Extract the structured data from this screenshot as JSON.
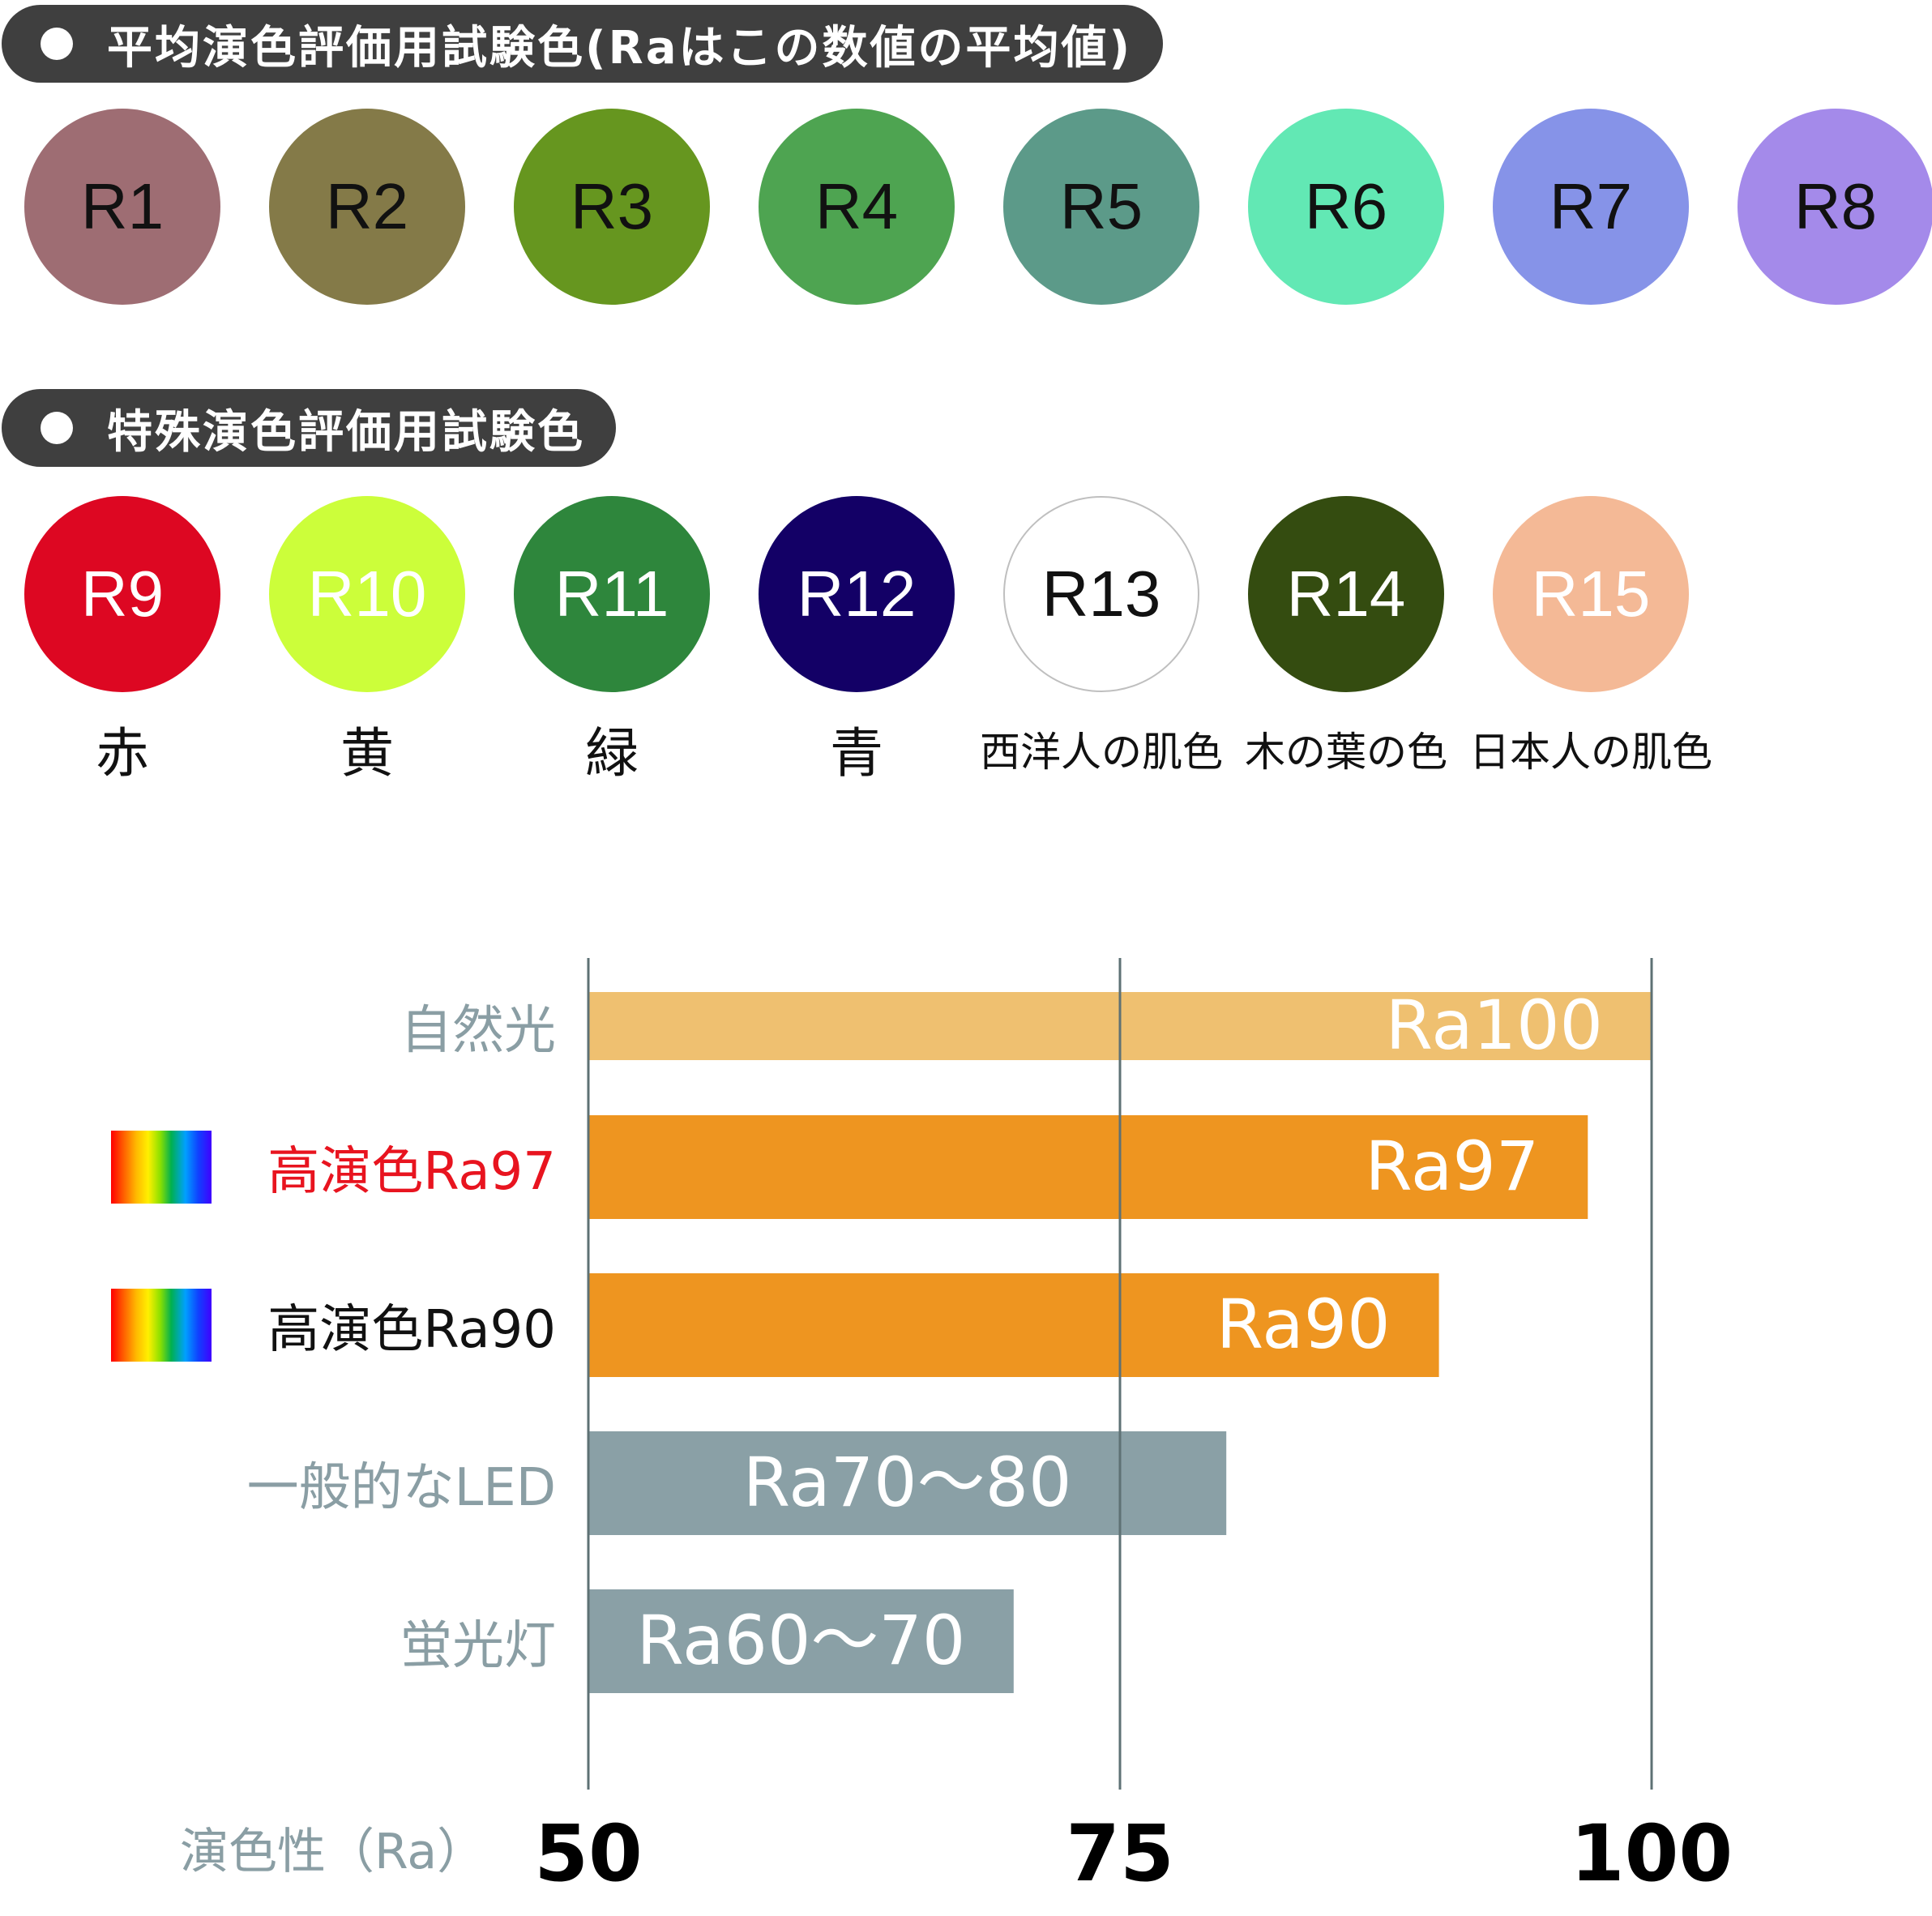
{
  "sections": {
    "general_title": "平均演色評価用試験色(Raはこの数値の平均値)",
    "special_title": "特殊演色評価用試験色"
  },
  "general_colors": [
    {
      "label": "R1",
      "color": "#9e6d73"
    },
    {
      "label": "R2",
      "color": "#847a48"
    },
    {
      "label": "R3",
      "color": "#66961f"
    },
    {
      "label": "R4",
      "color": "#4ea451"
    },
    {
      "label": "R5",
      "color": "#5c9a89"
    },
    {
      "label": "R6",
      "color": "#62e8b4"
    },
    {
      "label": "R7",
      "color": "#8693e8"
    },
    {
      "label": "R8",
      "color": "#a48aea"
    }
  ],
  "special_colors": [
    {
      "label": "R9",
      "color": "#dd0722",
      "text_color": "#ffffff",
      "caption": "赤"
    },
    {
      "label": "R10",
      "color": "#ccfe3a",
      "text_color": "#ffffff",
      "caption": "黄"
    },
    {
      "label": "R11",
      "color": "#2e863c",
      "text_color": "#ffffff",
      "caption": "緑"
    },
    {
      "label": "R12",
      "color": "#130066",
      "text_color": "#ffffff",
      "caption": "青"
    },
    {
      "label": "R13",
      "color": "#ffffff",
      "text_color": "#111111",
      "caption": "西洋人の肌色"
    },
    {
      "label": "R14",
      "color": "#344c10",
      "text_color": "#ffffff",
      "caption": "木の葉の色"
    },
    {
      "label": "R15",
      "color": "#f4b996",
      "text_color": "#ffffff",
      "caption": "日本人の肌色"
    }
  ],
  "chart_data": {
    "type": "bar",
    "orientation": "horizontal",
    "categories": [
      "自然光",
      "高演色Ra97",
      "高演色Ra90",
      "一般的なLED",
      "蛍光灯"
    ],
    "values": [
      100,
      97,
      90,
      80,
      70
    ],
    "bar_labels": [
      "Ra100",
      "Ra97",
      "Ra90",
      "Ra70〜80",
      "Ra60〜70"
    ],
    "bar_colors": [
      "#efc070",
      "#ee9520",
      "#ee9520",
      "#8aa0a6",
      "#8aa0a6"
    ],
    "category_colors": [
      "#8a9ea4",
      "#e8141f",
      "#111111",
      "#8a9ea4",
      "#8a9ea4"
    ],
    "spectrum_icon": [
      false,
      true,
      true,
      false,
      false
    ],
    "xlabel": "演色性（Ra）",
    "xlim": [
      50,
      100
    ],
    "xticks": [
      "50",
      "75",
      "100"
    ],
    "grid": true
  }
}
